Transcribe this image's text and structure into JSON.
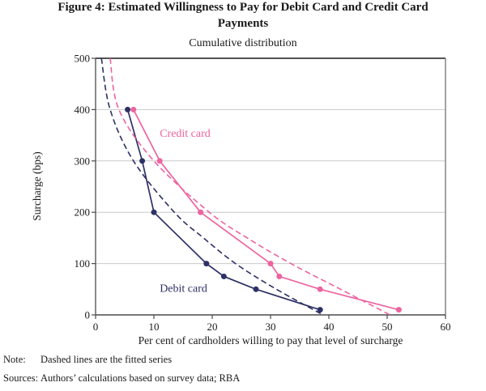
{
  "figure": {
    "title_line1": "Figure 4: Estimated Willingness to Pay for Debit Card and Credit Card",
    "title_line2": "Payments",
    "subtitle": "Cumulative distribution"
  },
  "note": {
    "label": "Note:",
    "text": "Dashed lines are the fitted series"
  },
  "sources": {
    "label": "Sources:",
    "text": "Authors’ calculations based on survey data; RBA"
  },
  "chart_data": {
    "type": "line",
    "title": "Cumulative distribution",
    "xlabel": "Per cent of cardholders willing to pay that level of surcharge",
    "ylabel": "Surcharge (bps)",
    "xlim": [
      0,
      60
    ],
    "ylim": [
      0,
      500
    ],
    "x_ticks": [
      0,
      10,
      20,
      30,
      40,
      50,
      60
    ],
    "y_ticks": [
      0,
      100,
      200,
      300,
      400,
      500
    ],
    "grid": "horizontal-gridlines-on",
    "legend_position": "inline-annotations",
    "colors": {
      "debit": "#2d3166",
      "credit": "#ed63a0",
      "gridline": "#c9c9c9",
      "frame_top": "#1a1a1a",
      "frame_right": "#8c8c8c",
      "axis": "#4a4a4a"
    },
    "series": [
      {
        "name": "Debit card",
        "style": "solid",
        "marker": "circle",
        "color": "#2d3166",
        "points": [
          [
            5.5,
            400
          ],
          [
            8,
            300
          ],
          [
            10,
            200
          ],
          [
            19,
            100
          ],
          [
            22,
            75
          ],
          [
            27.5,
            50
          ],
          [
            38.5,
            10
          ]
        ]
      },
      {
        "name": "Credit card",
        "style": "solid",
        "marker": "circle",
        "color": "#ed63a0",
        "points": [
          [
            6.5,
            400
          ],
          [
            11,
            300
          ],
          [
            18,
            200
          ],
          [
            30,
            100
          ],
          [
            31.5,
            75
          ],
          [
            38.5,
            50
          ],
          [
            52,
            10
          ]
        ]
      },
      {
        "name": "Debit card fitted",
        "style": "dashed",
        "marker": "none",
        "color": "#2d3166",
        "points": [
          [
            1,
            500
          ],
          [
            2.5,
            400
          ],
          [
            6.5,
            300
          ],
          [
            13.5,
            200
          ],
          [
            18.5,
            150
          ],
          [
            24,
            100
          ],
          [
            31,
            50
          ],
          [
            39,
            0
          ]
        ]
      },
      {
        "name": "Credit card fitted",
        "style": "dashed",
        "marker": "none",
        "color": "#ed63a0",
        "points": [
          [
            2.5,
            500
          ],
          [
            4,
            400
          ],
          [
            10,
            300
          ],
          [
            19.5,
            200
          ],
          [
            26,
            150
          ],
          [
            33.5,
            100
          ],
          [
            42,
            50
          ],
          [
            50.5,
            0
          ]
        ]
      }
    ],
    "annotations": [
      {
        "text": "Credit card",
        "x": 11,
        "y": 352,
        "color": "#ed63a0"
      },
      {
        "text": "Debit card",
        "x": 11,
        "y": 50,
        "color": "#2d3166"
      }
    ]
  }
}
